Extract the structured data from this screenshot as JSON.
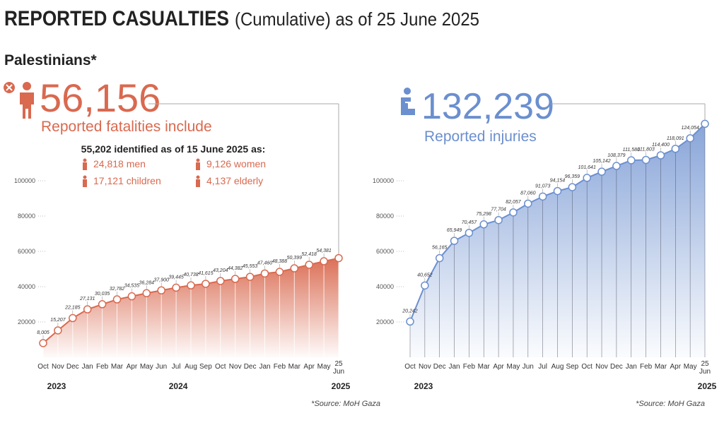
{
  "title": "REPORTED CASUALTIES",
  "title_note": "(Cumulative) as of 25 June 2025",
  "section": "Palestinians*",
  "chart_data": [
    {
      "type": "area",
      "headline": "56,156",
      "headline_label": "Reported fatalities include",
      "breakdown": {
        "title": "55,202 identified as of 15 June 2025 as:",
        "items": [
          "24,818 men",
          "9,126 women",
          "17,121 children",
          "4,137 elderly"
        ]
      },
      "categories": [
        "Oct",
        "Nov",
        "Dec",
        "Jan",
        "Feb",
        "Mar",
        "Apr",
        "May",
        "Jun",
        "Jul",
        "Aug",
        "Sep",
        "Oct",
        "Nov",
        "Dec",
        "Jan",
        "Feb",
        "Mar",
        "Apr",
        "May",
        "25 Jun"
      ],
      "values": [
        8005,
        15207,
        22185,
        27131,
        30035,
        32782,
        34535,
        36284,
        37900,
        39445,
        40738,
        41615,
        43204,
        44382,
        45553,
        47460,
        48388,
        50399,
        52418,
        54381,
        56156
      ],
      "value_labels": [
        "8,005",
        "15,207",
        "22,185",
        "27,131",
        "30,035",
        "32,782",
        "34,535",
        "36,284",
        "37,900",
        "39,445",
        "40,738",
        "41,615",
        "43,204",
        "44,382",
        "45,553",
        "47,460",
        "48,388",
        "50,399",
        "52,418",
        "54,381",
        null
      ],
      "color": "#d9694f",
      "ylim": [
        0,
        140000
      ],
      "yticks": [
        20000,
        40000,
        60000,
        80000,
        100000
      ],
      "year_labels": [
        {
          "label": "2023",
          "at": 0
        },
        {
          "label": "2024",
          "at": 9
        },
        {
          "label": "2025",
          "at": 20
        }
      ],
      "source": "*Source: MoH Gaza"
    },
    {
      "type": "area",
      "headline": "132,239",
      "headline_label": "Reported injuries",
      "categories": [
        "Oct",
        "Nov",
        "Dec",
        "Jan",
        "Feb",
        "Mar",
        "Apr",
        "May",
        "Jun",
        "Jul",
        "Aug",
        "Sep",
        "Oct",
        "Nov",
        "Dec",
        "Jan",
        "Feb",
        "Mar",
        "Apr",
        "May",
        "25 Jun"
      ],
      "values": [
        20242,
        40652,
        56165,
        65949,
        70457,
        75298,
        77704,
        82057,
        87060,
        91073,
        94154,
        96359,
        101641,
        105142,
        108379,
        111580,
        111803,
        114400,
        118091,
        124054,
        132239
      ],
      "value_labels": [
        "20,242",
        "40,652",
        "56,165",
        "65,949",
        "70,457",
        "75,298",
        "77,704",
        "82,057",
        "87,060",
        "91,073",
        "94,154",
        "96,359",
        "101,641",
        "105,142",
        "108,379",
        "111,580",
        "111,803",
        "114,400",
        "118,091",
        "124,054",
        null
      ],
      "color": "#6b8fcf",
      "ylim": [
        0,
        140000
      ],
      "yticks": [
        20000,
        40000,
        60000,
        80000,
        100000
      ],
      "year_labels": [
        {
          "label": "2023",
          "at": 0
        },
        {
          "label": "2025",
          "at": 20
        }
      ],
      "source": "*Source: MoH Gaza"
    }
  ]
}
